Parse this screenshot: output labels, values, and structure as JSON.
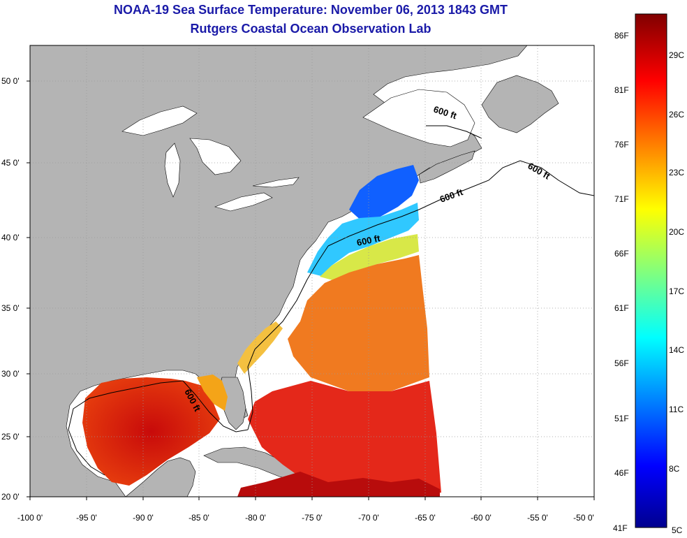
{
  "header": {
    "title": "NOAA-19 Sea Surface Temperature:  November 06, 2013 1843 GMT",
    "subtitle": "Rutgers Coastal Ocean Observation Lab"
  },
  "map": {
    "longitude_ticks": [
      "-100 0'",
      "-95 0'",
      "-90 0'",
      "-85 0'",
      "-80 0'",
      "-75 0'",
      "-70 0'",
      "-65 0'",
      "-60 0'",
      "-55 0'",
      "-50 0'"
    ],
    "latitude_ticks": [
      "50 0'",
      "45 0'",
      "40 0'",
      "35 0'",
      "30 0'",
      "25 0'",
      "20 0'"
    ],
    "contour_label": "600 ft",
    "land_color": "#b4b4b4",
    "no_data_color": "#ffffff",
    "gridlines": true
  },
  "colorbar": {
    "fahrenheit_labels": [
      "86F",
      "81F",
      "76F",
      "71F",
      "66F",
      "61F",
      "56F",
      "51F",
      "46F",
      "41F"
    ],
    "celsius_labels": [
      "29C",
      "26C",
      "23C",
      "20C",
      "17C",
      "14C",
      "11C",
      "8C",
      "5C"
    ],
    "colormap": "jet",
    "min_c": 5,
    "max_c": 31
  }
}
